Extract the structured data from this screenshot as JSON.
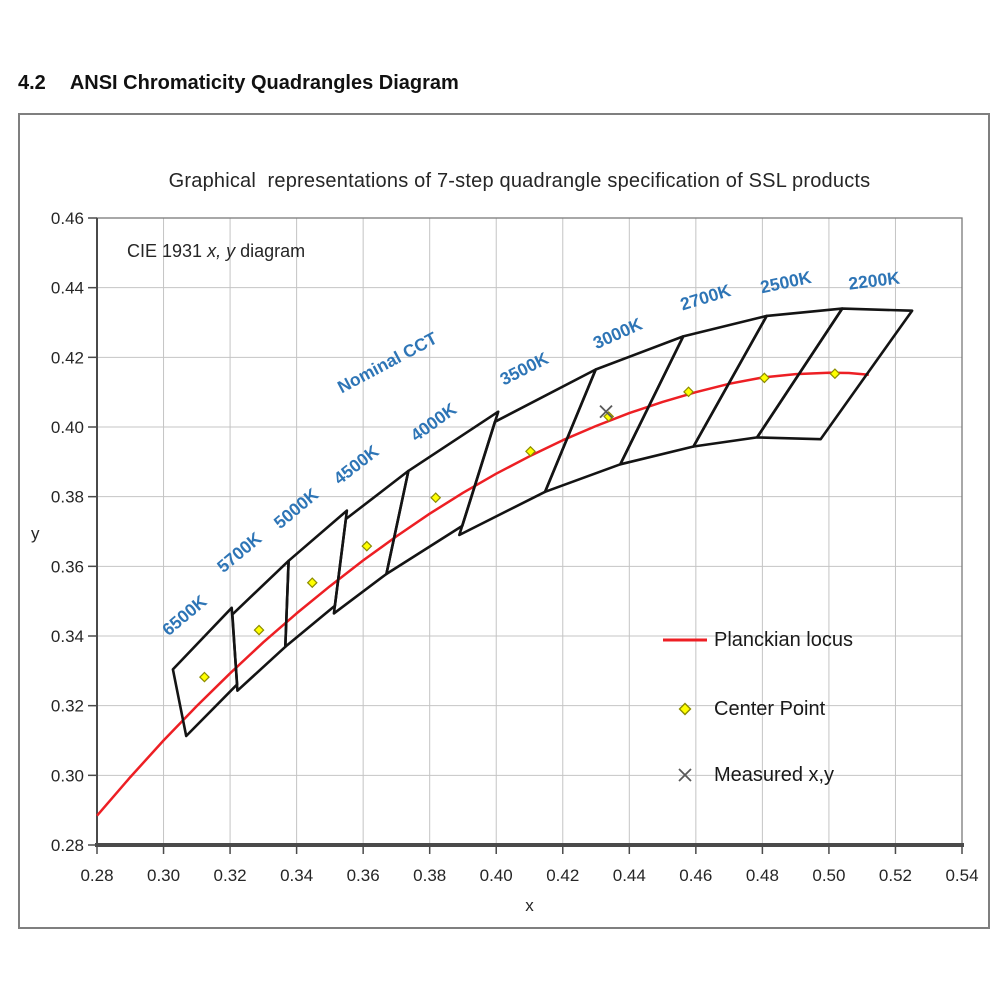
{
  "heading": {
    "number": "4.2",
    "title": "ANSI Chromaticity Quadrangles Diagram"
  },
  "chart": {
    "title": "Graphical  representations of 7-step quadrangle specification of SSL products",
    "inner_label": {
      "prefix": "CIE 1931 ",
      "italic_xy": "x, y",
      "suffix": " diagram"
    },
    "legend": [
      {
        "key": "planckian-locus",
        "label": "Planckian locus",
        "marker": "red-line"
      },
      {
        "key": "center-point",
        "label": "Center Point",
        "marker": "yellow-diamond"
      },
      {
        "key": "measured-xy",
        "label": "Measured x,y",
        "marker": "gray-cross"
      }
    ],
    "colors": {
      "cct_label_blue": "#2e75b6",
      "locus_red": "#ed1f24",
      "quadrangle_black": "#141414",
      "center_fill_yellow": "#ffff00",
      "center_stroke_olive": "#8c8c00",
      "measured_gray": "#595959",
      "grid_gray": "#c4c4c4",
      "axis_dark": "#4a4a4a",
      "frame_gray": "#7a7a7a",
      "text_dark": "#262626"
    }
  },
  "chart_data": {
    "type": "scatter",
    "title": "Graphical  representations of 7-step quadrangle specification of SSL products",
    "xlabel": "x",
    "ylabel": "y",
    "xlim": [
      0.28,
      0.54
    ],
    "ylim": [
      0.28,
      0.46
    ],
    "grid": true,
    "legend_position": "inside lower right",
    "x_ticks": [
      "0.28",
      "0.30",
      "0.32",
      "0.34",
      "0.36",
      "0.38",
      "0.40",
      "0.42",
      "0.44",
      "0.46",
      "0.48",
      "0.50",
      "0.52",
      "0.54"
    ],
    "y_ticks": [
      "0.28",
      "0.30",
      "0.32",
      "0.34",
      "0.36",
      "0.38",
      "0.40",
      "0.42",
      "0.44",
      "0.46"
    ],
    "nominal_cct_label": {
      "text": "Nominal CCT",
      "x": 0.3681,
      "y": 0.417,
      "angle": -28
    },
    "quadrangles": [
      {
        "cct": "6500K",
        "label_x": 0.3074,
        "label_y": 0.3446,
        "label_angle": -40,
        "vertices": [
          [
            0.3205,
            0.3481
          ],
          [
            0.3028,
            0.3304
          ],
          [
            0.3068,
            0.3113
          ],
          [
            0.3221,
            0.3261
          ]
        ]
      },
      {
        "cct": "5700K",
        "label_x": 0.3239,
        "label_y": 0.3627,
        "label_angle": -40,
        "vertices": [
          [
            0.3376,
            0.3616
          ],
          [
            0.3207,
            0.3462
          ],
          [
            0.3222,
            0.3243
          ],
          [
            0.3366,
            0.3369
          ]
        ]
      },
      {
        "cct": "5000K",
        "label_x": 0.341,
        "label_y": 0.3753,
        "label_angle": -40,
        "vertices": [
          [
            0.3551,
            0.376
          ],
          [
            0.3376,
            0.3616
          ],
          [
            0.3366,
            0.3369
          ],
          [
            0.3515,
            0.3487
          ]
        ]
      },
      {
        "cct": "4500K",
        "label_x": 0.359,
        "label_y": 0.3878,
        "label_angle": -38,
        "vertices": [
          [
            0.3736,
            0.3874
          ],
          [
            0.3548,
            0.3736
          ],
          [
            0.3512,
            0.3465
          ],
          [
            0.367,
            0.3578
          ]
        ]
      },
      {
        "cct": "4000K",
        "label_x": 0.3822,
        "label_y": 0.4,
        "label_angle": -36,
        "vertices": [
          [
            0.4006,
            0.4044
          ],
          [
            0.3736,
            0.3874
          ],
          [
            0.367,
            0.3578
          ],
          [
            0.3898,
            0.3716
          ]
        ]
      },
      {
        "cct": "3500K",
        "label_x": 0.4092,
        "label_y": 0.4152,
        "label_angle": -27,
        "vertices": [
          [
            0.4299,
            0.4165
          ],
          [
            0.3996,
            0.4015
          ],
          [
            0.3889,
            0.369
          ],
          [
            0.4147,
            0.3814
          ]
        ]
      },
      {
        "cct": "3000K",
        "label_x": 0.4372,
        "label_y": 0.4253,
        "label_angle": -24,
        "vertices": [
          [
            0.4562,
            0.426
          ],
          [
            0.4299,
            0.4165
          ],
          [
            0.4147,
            0.3814
          ],
          [
            0.4373,
            0.3893
          ]
        ]
      },
      {
        "cct": "2700K",
        "label_x": 0.4634,
        "label_y": 0.4356,
        "label_angle": -17,
        "vertices": [
          [
            0.4813,
            0.4319
          ],
          [
            0.4562,
            0.426
          ],
          [
            0.4373,
            0.3893
          ],
          [
            0.4593,
            0.3944
          ]
        ]
      },
      {
        "cct": "2500K",
        "label_x": 0.4874,
        "label_y": 0.4399,
        "label_angle": -12,
        "vertices": [
          [
            0.504,
            0.434
          ],
          [
            0.4813,
            0.4319
          ],
          [
            0.4593,
            0.3944
          ],
          [
            0.4784,
            0.397
          ]
        ]
      },
      {
        "cct": "2200K",
        "label_x": 0.5138,
        "label_y": 0.4403,
        "label_angle": -7,
        "vertices": [
          [
            0.525,
            0.4334
          ],
          [
            0.504,
            0.434
          ],
          [
            0.4784,
            0.397
          ],
          [
            0.4975,
            0.3965
          ]
        ]
      }
    ],
    "center_points": [
      {
        "cct": "6500K",
        "x": 0.3123,
        "y": 0.3282
      },
      {
        "cct": "5700K",
        "x": 0.3287,
        "y": 0.3417
      },
      {
        "cct": "5000K",
        "x": 0.3447,
        "y": 0.3553
      },
      {
        "cct": "4500K",
        "x": 0.3611,
        "y": 0.3658
      },
      {
        "cct": "4000K",
        "x": 0.3818,
        "y": 0.3797
      },
      {
        "cct": "3500K",
        "x": 0.4103,
        "y": 0.393
      },
      {
        "cct": "3000K",
        "x": 0.4338,
        "y": 0.403
      },
      {
        "cct": "2700K",
        "x": 0.4578,
        "y": 0.4101
      },
      {
        "cct": "2500K",
        "x": 0.4806,
        "y": 0.4141
      },
      {
        "cct": "2200K",
        "x": 0.5018,
        "y": 0.4153
      }
    ],
    "measured_points": [
      {
        "x": 0.433,
        "y": 0.4044
      }
    ],
    "planckian_locus": [
      [
        0.28,
        0.2884
      ],
      [
        0.29,
        0.2995
      ],
      [
        0.3,
        0.31
      ],
      [
        0.31,
        0.3199
      ],
      [
        0.32,
        0.3293
      ],
      [
        0.33,
        0.3382
      ],
      [
        0.34,
        0.3465
      ],
      [
        0.35,
        0.3543
      ],
      [
        0.36,
        0.3617
      ],
      [
        0.37,
        0.3686
      ],
      [
        0.38,
        0.3751
      ],
      [
        0.39,
        0.3811
      ],
      [
        0.4,
        0.3866
      ],
      [
        0.41,
        0.3916
      ],
      [
        0.42,
        0.3962
      ],
      [
        0.43,
        0.4003
      ],
      [
        0.44,
        0.404
      ],
      [
        0.45,
        0.4072
      ],
      [
        0.46,
        0.41
      ],
      [
        0.47,
        0.4124
      ],
      [
        0.48,
        0.4142
      ],
      [
        0.49,
        0.4152
      ],
      [
        0.5,
        0.4156
      ],
      [
        0.506,
        0.4155
      ],
      [
        0.512,
        0.415
      ]
    ]
  }
}
